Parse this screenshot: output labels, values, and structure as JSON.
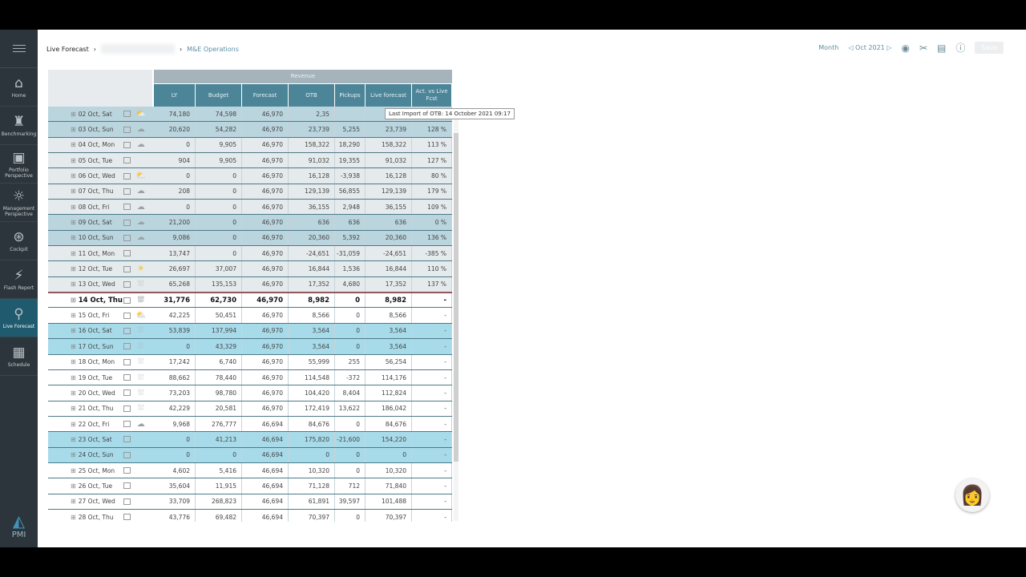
{
  "sidebar": {
    "items": [
      {
        "label": "Home",
        "icon": "home-icon",
        "glyph": "⌂"
      },
      {
        "label": "Benchmarking",
        "icon": "people-icon",
        "glyph": "♜"
      },
      {
        "label": "Portfolio Perspective",
        "icon": "briefcase-icon",
        "glyph": "▣"
      },
      {
        "label": "Management Perspective",
        "icon": "lightbulb-icon",
        "glyph": "☼"
      },
      {
        "label": "Cockpit",
        "icon": "steering-wheel-icon",
        "glyph": "⊛"
      },
      {
        "label": "Flash Report",
        "icon": "flash-monitor-icon",
        "glyph": "⚡"
      },
      {
        "label": "Live Forecast",
        "icon": "satellite-icon",
        "glyph": "⚲",
        "active": true
      },
      {
        "label": "Schedule",
        "icon": "calendar-clock-icon",
        "glyph": "▦"
      }
    ],
    "logo": "PMI"
  },
  "breadcrumb": {
    "root": "Live Forecast",
    "leaf": "M&E Operations"
  },
  "toolbar": {
    "period": "Month",
    "date": "Oct 2021",
    "save": "Save"
  },
  "table": {
    "group": "Revenue",
    "columns": [
      "LY",
      "Budget",
      "Forecast",
      "OTB",
      "Pickups",
      "Live forecast",
      "Act. vs Live Fcst"
    ],
    "tooltip": "Last Import of OTB: 14 October 2021 09:17",
    "rows": [
      {
        "date": "02 Oct, Sat",
        "type": "pw",
        "weather": "sun-cloud",
        "v": [
          "74,180",
          "74,598",
          "46,970",
          "2,35",
          "",
          "",
          ""
        ]
      },
      {
        "date": "03 Oct, Sun",
        "type": "pw",
        "weather": "cloud",
        "v": [
          "20,620",
          "54,282",
          "46,970",
          "23,739",
          "5,255",
          "23,739",
          "128 %"
        ]
      },
      {
        "date": "04 Oct, Mon",
        "type": "past",
        "weather": "cloud",
        "v": [
          "0",
          "9,905",
          "46,970",
          "158,322",
          "18,290",
          "158,322",
          "113 %"
        ]
      },
      {
        "date": "05 Oct, Tue",
        "type": "past",
        "weather": "none",
        "v": [
          "904",
          "9,905",
          "46,970",
          "91,032",
          "19,355",
          "91,032",
          "127 %"
        ]
      },
      {
        "date": "06 Oct, Wed",
        "type": "past",
        "weather": "sun-cloud",
        "v": [
          "0",
          "0",
          "46,970",
          "16,128",
          "-3,938",
          "16,128",
          "80 %"
        ]
      },
      {
        "date": "07 Oct, Thu",
        "type": "past",
        "weather": "cloud",
        "v": [
          "208",
          "0",
          "46,970",
          "129,139",
          "56,855",
          "129,139",
          "179 %"
        ]
      },
      {
        "date": "08 Oct, Fri",
        "type": "past",
        "weather": "cloud",
        "v": [
          "0",
          "0",
          "46,970",
          "36,155",
          "2,948",
          "36,155",
          "109 %"
        ]
      },
      {
        "date": "09 Oct, Sat",
        "type": "pw",
        "weather": "cloud",
        "v": [
          "21,200",
          "0",
          "46,970",
          "636",
          "636",
          "636",
          "0 %"
        ]
      },
      {
        "date": "10 Oct, Sun",
        "type": "pw",
        "weather": "cloud",
        "v": [
          "9,086",
          "0",
          "46,970",
          "20,360",
          "5,392",
          "20,360",
          "136 %"
        ]
      },
      {
        "date": "11 Oct, Mon",
        "type": "past",
        "weather": "none",
        "v": [
          "13,747",
          "0",
          "46,970",
          "-24,651",
          "-31,059",
          "-24,651",
          "-385 %"
        ]
      },
      {
        "date": "12 Oct, Tue",
        "type": "past",
        "weather": "sun",
        "v": [
          "26,697",
          "37,007",
          "46,970",
          "16,844",
          "1,536",
          "16,844",
          "110 %"
        ]
      },
      {
        "date": "13 Oct, Wed",
        "type": "past",
        "weather": "rain",
        "v": [
          "65,268",
          "135,153",
          "46,970",
          "17,352",
          "4,680",
          "17,352",
          "137 %"
        ]
      },
      {
        "date": "14 Oct, Thu",
        "type": "today",
        "weather": "rain",
        "v": [
          "31,776",
          "62,730",
          "46,970",
          "8,982",
          "0",
          "8,982",
          "-"
        ]
      },
      {
        "date": "15 Oct, Fri",
        "type": "fut",
        "weather": "sun-cloud",
        "v": [
          "42,225",
          "50,451",
          "46,970",
          "8,566",
          "0",
          "8,566",
          "-"
        ]
      },
      {
        "date": "16 Oct, Sat",
        "type": "fw",
        "weather": "rain",
        "v": [
          "53,839",
          "137,994",
          "46,970",
          "3,564",
          "0",
          "3,564",
          "-"
        ]
      },
      {
        "date": "17 Oct, Sun",
        "type": "fw",
        "weather": "rain",
        "v": [
          "0",
          "43,329",
          "46,970",
          "3,564",
          "0",
          "3,564",
          "-"
        ]
      },
      {
        "date": "18 Oct, Mon",
        "type": "fut",
        "weather": "rain",
        "v": [
          "17,242",
          "6,740",
          "46,970",
          "55,999",
          "255",
          "56,254",
          "-"
        ]
      },
      {
        "date": "19 Oct, Tue",
        "type": "fut",
        "weather": "rain",
        "v": [
          "88,662",
          "78,440",
          "46,970",
          "114,548",
          "-372",
          "114,176",
          "-"
        ]
      },
      {
        "date": "20 Oct, Wed",
        "type": "fut",
        "weather": "rain",
        "v": [
          "73,203",
          "98,780",
          "46,970",
          "104,420",
          "8,404",
          "112,824",
          "-"
        ]
      },
      {
        "date": "21 Oct, Thu",
        "type": "fut",
        "weather": "rain",
        "v": [
          "42,229",
          "20,581",
          "46,970",
          "172,419",
          "13,622",
          "186,042",
          "-"
        ]
      },
      {
        "date": "22 Oct, Fri",
        "type": "fut",
        "weather": "cloud",
        "v": [
          "9,968",
          "276,777",
          "46,694",
          "84,676",
          "0",
          "84,676",
          "-"
        ]
      },
      {
        "date": "23 Oct, Sat",
        "type": "fw",
        "weather": "none",
        "v": [
          "0",
          "41,213",
          "46,694",
          "175,820",
          "-21,600",
          "154,220",
          "-"
        ]
      },
      {
        "date": "24 Oct, Sun",
        "type": "fw",
        "weather": "none",
        "v": [
          "0",
          "0",
          "46,694",
          "0",
          "0",
          "0",
          "-"
        ]
      },
      {
        "date": "25 Oct, Mon",
        "type": "fut",
        "weather": "none",
        "v": [
          "4,602",
          "5,416",
          "46,694",
          "10,320",
          "0",
          "10,320",
          "-"
        ]
      },
      {
        "date": "26 Oct, Tue",
        "type": "fut",
        "weather": "none",
        "v": [
          "35,604",
          "11,915",
          "46,694",
          "71,128",
          "712",
          "71,840",
          "-"
        ]
      },
      {
        "date": "27 Oct, Wed",
        "type": "fut",
        "weather": "none",
        "v": [
          "33,709",
          "268,823",
          "46,694",
          "61,891",
          "39,597",
          "101,488",
          "-"
        ]
      },
      {
        "date": "28 Oct, Thu",
        "type": "fut",
        "weather": "none",
        "v": [
          "43,776",
          "69,482",
          "46,694",
          "70,397",
          "0",
          "70,397",
          "-"
        ]
      }
    ]
  },
  "colors": {
    "sidebar": "#2c353b",
    "header": "#4d8598",
    "today_line": "#dd3333",
    "future_weekend": "#a8dbea",
    "past_weekend": "#bad5de"
  }
}
